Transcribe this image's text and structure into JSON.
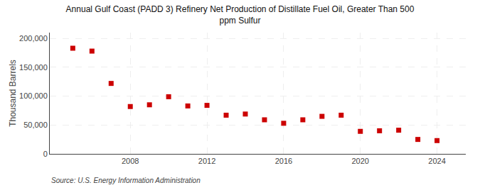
{
  "chart_data": {
    "type": "scatter",
    "title": "Annual Gulf Coast (PADD 3) Refinery Net Production of Distillate Fuel Oil, Greater Than 500\nppm Sulfur",
    "ylabel": "Thousand Barrels",
    "annotations": [
      "Source: U.S. Energy Information Administration"
    ],
    "x": [
      2005,
      2006,
      2007,
      2008,
      2009,
      2010,
      2011,
      2012,
      2013,
      2014,
      2015,
      2016,
      2017,
      2018,
      2019,
      2020,
      2021,
      2022,
      2023,
      2024
    ],
    "values": [
      183000,
      178000,
      122000,
      82000,
      85000,
      99000,
      83000,
      84000,
      67000,
      69000,
      59000,
      53000,
      59000,
      65000,
      67000,
      39000,
      40000,
      41000,
      25000,
      23000
    ],
    "color": "#cc0000",
    "marker": "square",
    "xlim": [
      2003.8,
      2025.5
    ],
    "xticks": [
      2008,
      2012,
      2016,
      2020,
      2024
    ],
    "ylim": [
      0,
      210000
    ],
    "yticks": [
      0,
      {
        "value": 50000,
        "label": "50,000"
      },
      {
        "value": 100000,
        "label": "100,000"
      },
      {
        "value": 150000,
        "label": "150,000"
      },
      {
        "value": 200000,
        "label": "200,000"
      }
    ],
    "grid": true
  }
}
